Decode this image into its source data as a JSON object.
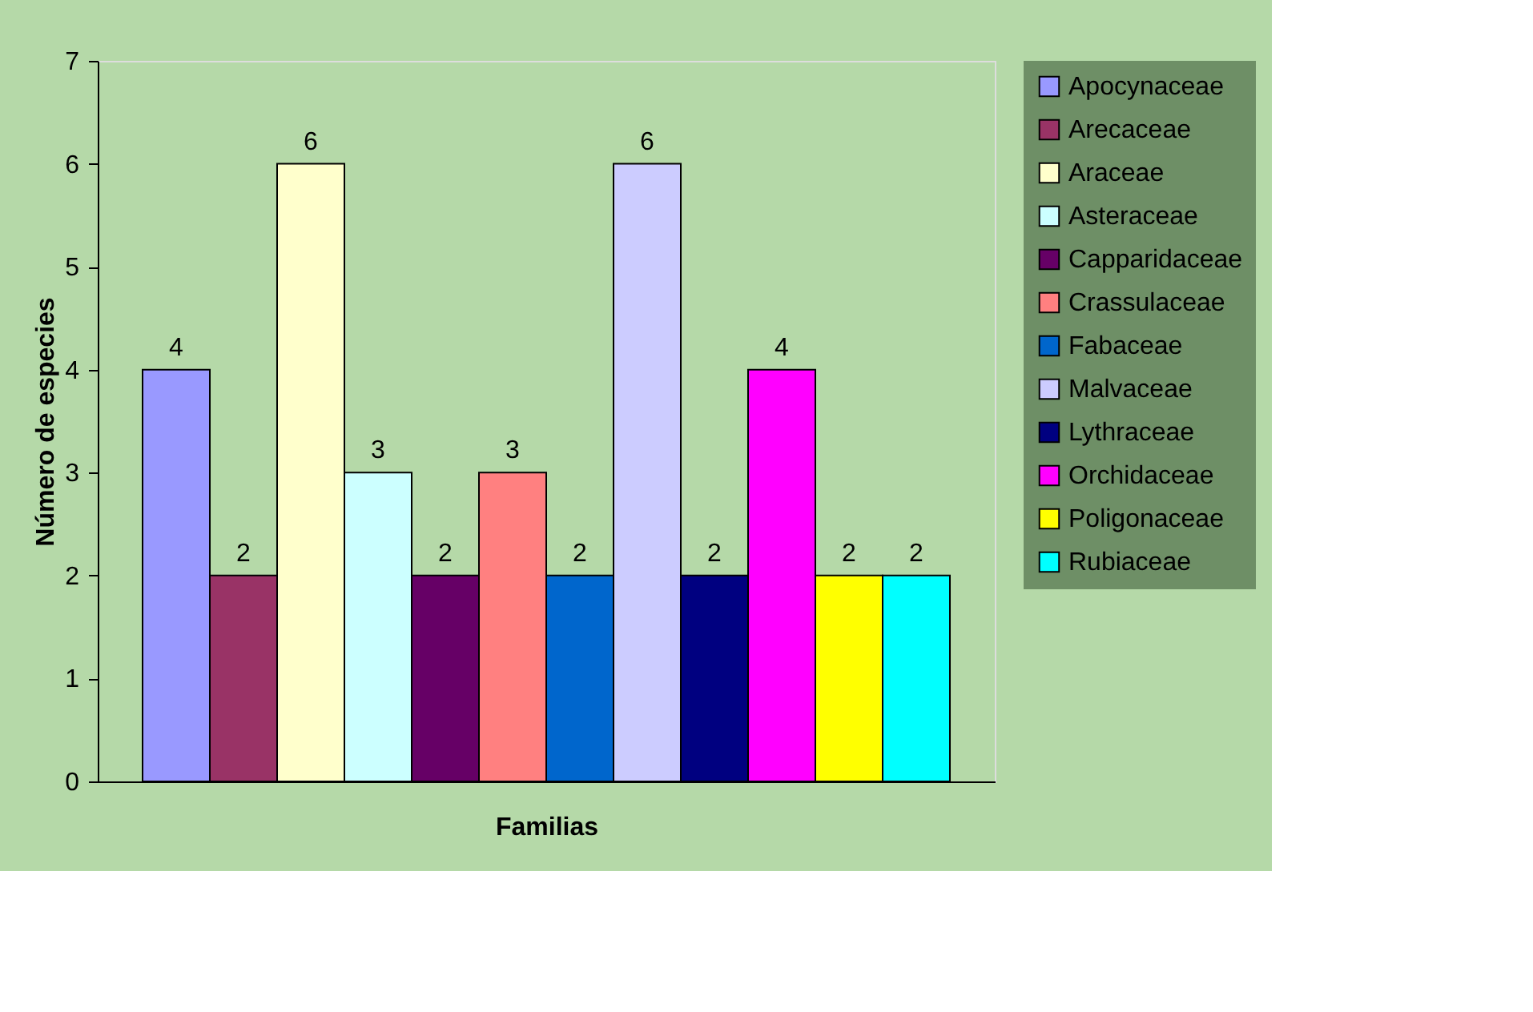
{
  "chart_data": {
    "type": "bar",
    "xlabel": "Familias",
    "ylabel": "Número de especies",
    "categories": [
      null
    ],
    "series": [
      {
        "name": "Apocynaceae",
        "color": "#9999ff",
        "values": [
          4
        ]
      },
      {
        "name": "Arecaceae",
        "color": "#993366",
        "values": [
          2
        ]
      },
      {
        "name": "Araceae",
        "color": "#ffffcc",
        "values": [
          6
        ]
      },
      {
        "name": "Asteraceae",
        "color": "#ccffff",
        "values": [
          3
        ]
      },
      {
        "name": "Capparidaceae",
        "color": "#660066",
        "values": [
          2
        ]
      },
      {
        "name": "Crassulaceae",
        "color": "#ff8080",
        "values": [
          3
        ]
      },
      {
        "name": "Fabaceae",
        "color": "#0066cc",
        "values": [
          2
        ]
      },
      {
        "name": "Malvaceae",
        "color": "#ccccff",
        "values": [
          6
        ]
      },
      {
        "name": "Lythraceae",
        "color": "#000080",
        "values": [
          2
        ]
      },
      {
        "name": "Orchidaceae",
        "color": "#ff00ff",
        "values": [
          4
        ]
      },
      {
        "name": "Poligonaceae",
        "color": "#ffff00",
        "values": [
          2
        ]
      },
      {
        "name": "Rubiaceae",
        "color": "#00ffff",
        "values": [
          2
        ]
      }
    ],
    "ylim": [
      0,
      7
    ],
    "yticks": [
      0,
      1,
      2,
      3,
      4,
      5,
      6,
      7
    ],
    "grid": false,
    "legend": "right",
    "data_labels": true,
    "tick_labels": "y"
  }
}
